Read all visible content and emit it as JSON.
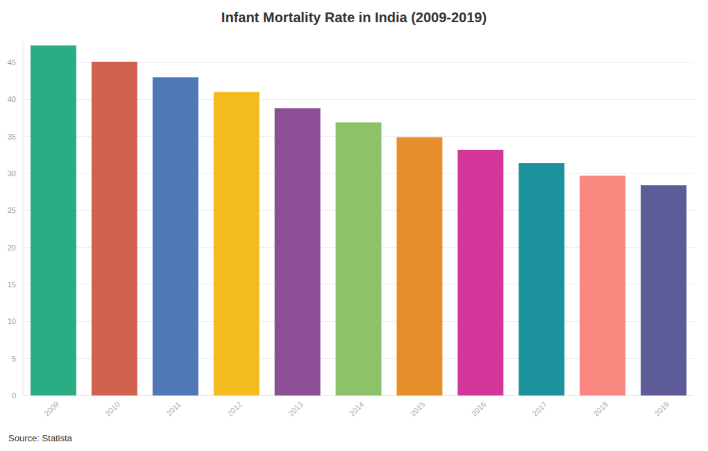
{
  "chart_data": {
    "type": "bar",
    "title": "Infant Mortality Rate in India (2009-2019)",
    "source": "Source: Statista",
    "categories": [
      "2009",
      "2010",
      "2011",
      "2012",
      "2013",
      "2014",
      "2015",
      "2016",
      "2017",
      "2018",
      "2019"
    ],
    "values": [
      47.3,
      45.1,
      43.0,
      41.0,
      38.8,
      36.9,
      34.9,
      33.2,
      31.4,
      29.7,
      28.4
    ],
    "colors": [
      "#2aad85",
      "#d0624f",
      "#4e79b4",
      "#f2bb1e",
      "#8c4f96",
      "#8cc268",
      "#e68f2a",
      "#d43699",
      "#1c929c",
      "#f9877f",
      "#5e5c98"
    ],
    "ylim": [
      0,
      48
    ],
    "yticks": [
      0,
      5,
      10,
      15,
      20,
      25,
      30,
      35,
      40,
      45
    ],
    "grid": true
  }
}
